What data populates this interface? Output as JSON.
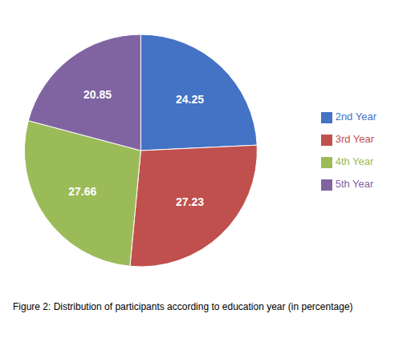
{
  "chart_data": {
    "type": "pie",
    "title": "Figure 2: Distribution of participants according to education year (in percentage)",
    "categories": [
      "2nd Year",
      "3rd Year",
      "4th Year",
      "5th Year"
    ],
    "values": [
      24.25,
      27.23,
      27.66,
      20.85
    ],
    "colors": [
      "#4472C4",
      "#C0504D",
      "#9BBB59",
      "#8064A2"
    ],
    "data_labels": true,
    "legend": "right"
  }
}
